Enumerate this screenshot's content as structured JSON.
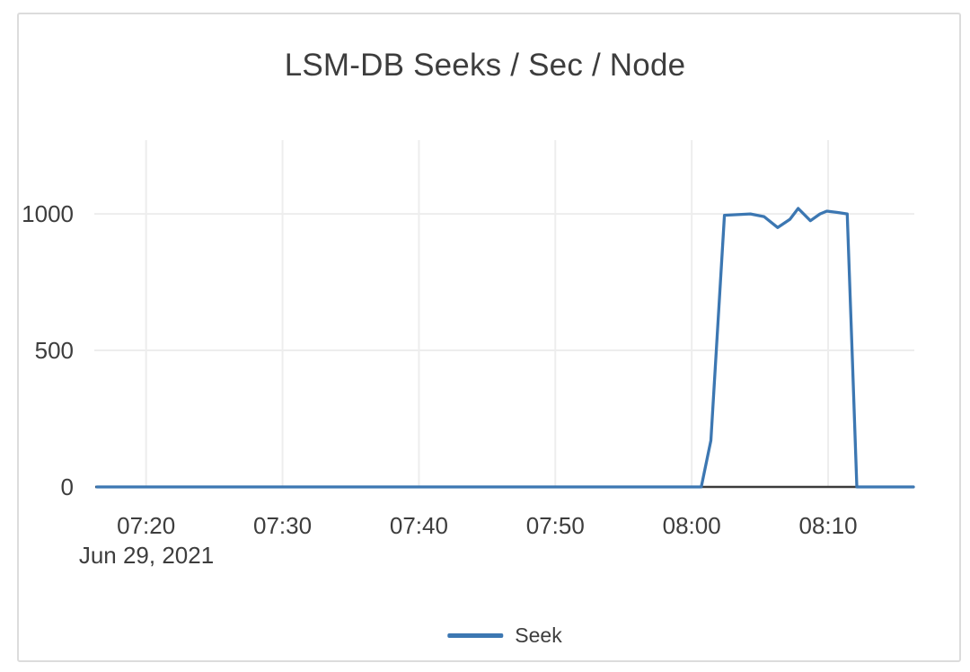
{
  "window": {
    "background": "#ffffff",
    "card_border_color": "#dcdcdc"
  },
  "chart_data": {
    "type": "line",
    "title": "LSM-DB Seeks / Sec / Node",
    "grid": true,
    "legend_position": "bottom",
    "colors": {
      "grid": "#ededed",
      "axis": "#3b3b3b",
      "text": "#3d3d3d",
      "series_blue": "#3c77b2"
    },
    "x_axis": {
      "date_label": "Jun 29, 2021",
      "tick_labels": [
        "07:20",
        "07:30",
        "07:40",
        "07:50",
        "08:00",
        "08:10"
      ],
      "tick_minutes": [
        440,
        450,
        460,
        470,
        480,
        490
      ],
      "range_minutes": [
        436.4,
        496.25
      ]
    },
    "y_axis": {
      "tick_labels": [
        "0",
        "500",
        "1000"
      ],
      "tick_values": [
        0,
        500,
        1000
      ],
      "range": [
        0,
        1270
      ]
    },
    "series": [
      {
        "name": "Seek",
        "color": "#3c77b2",
        "points_t_minutes_v": [
          [
            436.4,
            0
          ],
          [
            440,
            0
          ],
          [
            445,
            0
          ],
          [
            450,
            0
          ],
          [
            455,
            0
          ],
          [
            460,
            0
          ],
          [
            465,
            0
          ],
          [
            470,
            0
          ],
          [
            475,
            0
          ],
          [
            480,
            0
          ],
          [
            480.7,
            0
          ],
          [
            481.4,
            170
          ],
          [
            482.4,
            995
          ],
          [
            484.3,
            1000
          ],
          [
            485.3,
            990
          ],
          [
            486.3,
            950
          ],
          [
            487.2,
            980
          ],
          [
            487.8,
            1020
          ],
          [
            488.7,
            975
          ],
          [
            489.4,
            1000
          ],
          [
            489.9,
            1010
          ],
          [
            490.7,
            1005
          ],
          [
            491.4,
            1000
          ],
          [
            491.75,
            500
          ],
          [
            492.1,
            0
          ],
          [
            494,
            0
          ],
          [
            496.25,
            0
          ]
        ]
      }
    ]
  }
}
